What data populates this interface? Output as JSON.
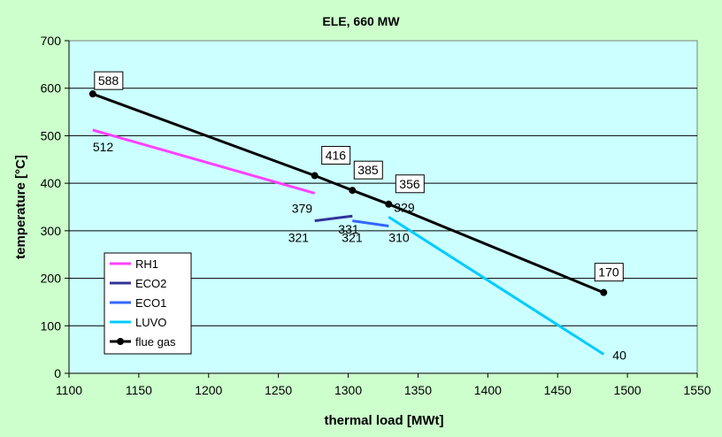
{
  "chart_data": {
    "type": "line",
    "title": "ELE, 660 MW",
    "xlabel": "thermal load [MWt]",
    "ylabel": "temperature [°C]",
    "xlim": [
      1100,
      1550
    ],
    "ylim": [
      0,
      700
    ],
    "xticks": [
      "1100",
      "1150",
      "1200",
      "1250",
      "1300",
      "1350",
      "1400",
      "1450",
      "1500",
      "1550"
    ],
    "yticks": [
      "0",
      "100",
      "200",
      "300",
      "400",
      "500",
      "600",
      "700"
    ],
    "grid": "horizontal",
    "legend_position": "bottom-left",
    "series": [
      {
        "name": "RH1",
        "color": "#ff40ff",
        "marker": false,
        "points": [
          [
            1117,
            512
          ],
          [
            1276,
            379
          ]
        ]
      },
      {
        "name": "ECO2",
        "color": "#333399",
        "marker": false,
        "points": [
          [
            1276,
            321
          ],
          [
            1303,
            331
          ]
        ]
      },
      {
        "name": "ECO1",
        "color": "#3366ff",
        "marker": false,
        "points": [
          [
            1303,
            321
          ],
          [
            1329,
            310
          ]
        ]
      },
      {
        "name": "LUVO",
        "color": "#00ccff",
        "marker": false,
        "points": [
          [
            1329,
            329
          ],
          [
            1483,
            40
          ]
        ]
      },
      {
        "name": "flue gas",
        "color": "#000000",
        "marker": true,
        "points": [
          [
            1117,
            588
          ],
          [
            1276,
            416
          ],
          [
            1303,
            385
          ],
          [
            1329,
            356
          ],
          [
            1483,
            170
          ]
        ]
      }
    ],
    "data_labels": [
      {
        "text": "588",
        "boxed": true,
        "color": "#000000",
        "x": 1117,
        "y": 588
      },
      {
        "text": "416",
        "boxed": true,
        "color": "#000000",
        "x": 1276,
        "y": 416
      },
      {
        "text": "385",
        "boxed": true,
        "color": "#000000",
        "x": 1303,
        "y": 385
      },
      {
        "text": "356",
        "boxed": true,
        "color": "#000000",
        "x": 1329,
        "y": 356
      },
      {
        "text": "170",
        "boxed": true,
        "color": "#000000",
        "x": 1483,
        "y": 170
      },
      {
        "text": "512",
        "boxed": false,
        "color": "#000000",
        "x": 1117,
        "y": 512
      },
      {
        "text": "379",
        "boxed": false,
        "color": "#000000",
        "x": 1276,
        "y": 379
      },
      {
        "text": "331",
        "boxed": false,
        "color": "#000000",
        "x": 1303,
        "y": 331
      },
      {
        "text": "321",
        "boxed": false,
        "color": "#000000",
        "x": 1276,
        "y": 321
      },
      {
        "text": "329",
        "boxed": false,
        "color": "#000000",
        "x": 1329,
        "y": 329
      },
      {
        "text": "321",
        "boxed": false,
        "color": "#000000",
        "x": 1303,
        "y": 321
      },
      {
        "text": "310",
        "boxed": false,
        "color": "#ff3300",
        "x": 1329,
        "y": 310
      },
      {
        "text": "40",
        "boxed": false,
        "color": "#000000",
        "x": 1483,
        "y": 40
      }
    ]
  }
}
